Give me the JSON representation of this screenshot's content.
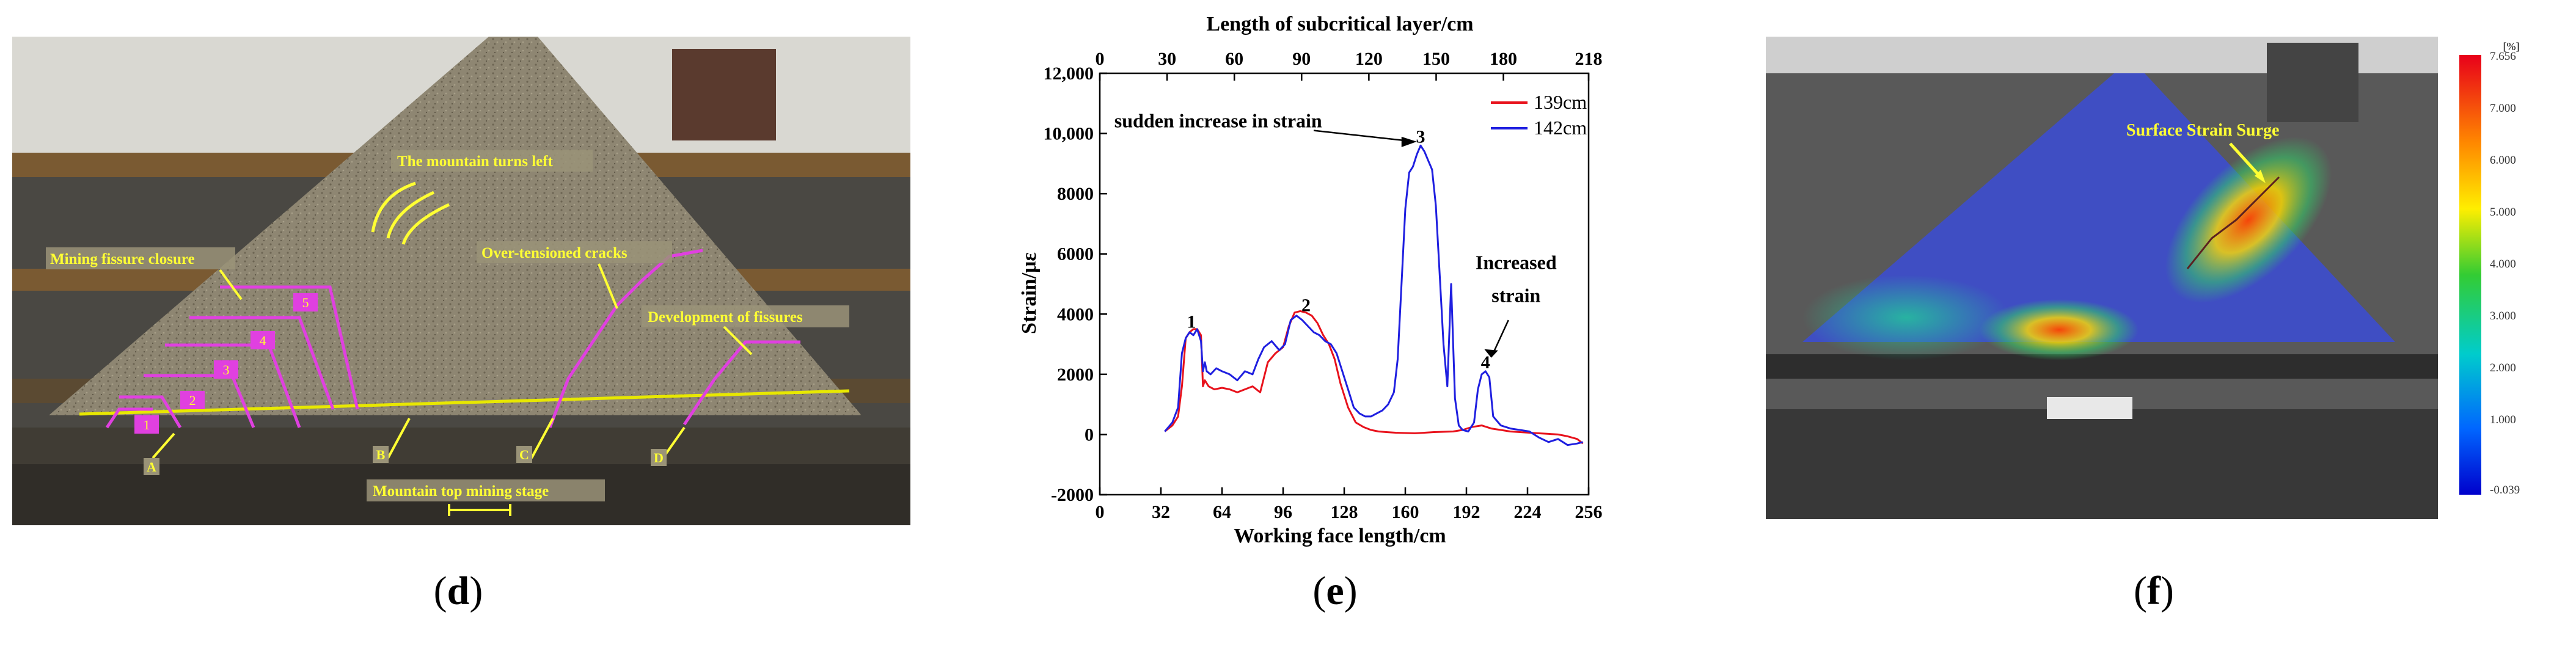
{
  "panels": {
    "d": {
      "letter": "d",
      "annotations": {
        "mountain_turns_left": "The mountain turns left",
        "mining_fissure_closure": "Mining fissure closure",
        "over_tensioned_cracks": "Over-tensioned cracks",
        "development_of_fissures": "Development of fissures",
        "mountain_top_mining_stage": "Mountain top mining stage"
      },
      "step_labels": [
        "1",
        "2",
        "3",
        "4",
        "5"
      ],
      "markers": [
        "A",
        "B",
        "C",
        "D"
      ],
      "colors": {
        "overlay_text": "#ffff33",
        "fissure_lines": "#e040e0",
        "stratum_line": "#e8e800"
      }
    },
    "e": {
      "letter": "e",
      "chart_data": {
        "type": "line",
        "title": "",
        "xlabel": "Working face length/cm",
        "ylabel": "Strain/με",
        "x2label": "Length of subcritical layer/cm",
        "xlim": [
          0,
          256
        ],
        "ylim": [
          -2000,
          12000
        ],
        "xticks": [
          0,
          32,
          64,
          96,
          128,
          160,
          192,
          224,
          256
        ],
        "yticks": [
          -2000,
          0,
          2000,
          4000,
          6000,
          8000,
          10000,
          12000
        ],
        "ytick_labels": [
          "-2000",
          "0",
          "2000",
          "4000",
          "6000",
          "8000",
          "10,000",
          "12,000"
        ],
        "x2ticks": [
          0,
          30,
          60,
          90,
          120,
          150,
          180,
          218
        ],
        "legend_position": "top-right",
        "series": [
          {
            "name": "139cm",
            "color": "#e8121c",
            "x": [
              34,
              38,
              41,
              43,
              45,
              47,
              49,
              51,
              53,
              54,
              55,
              57,
              60,
              64,
              68,
              72,
              76,
              80,
              84,
              88,
              92,
              96,
              99,
              102,
              105,
              108,
              111,
              114,
              117,
              120,
              123,
              126,
              130,
              134,
              138,
              142,
              146,
              150,
              155,
              160,
              165,
              170,
              175,
              180,
              185,
              190,
              195,
              200,
              205,
              210,
              215,
              220,
              225,
              230,
              235,
              240,
              245,
              250,
              253
            ],
            "y": [
              100,
              300,
              600,
              1600,
              3200,
              3400,
              3500,
              3500,
              3300,
              1600,
              1800,
              1600,
              1500,
              1550,
              1500,
              1400,
              1500,
              1600,
              1400,
              2400,
              2700,
              2900,
              3600,
              4050,
              4100,
              4050,
              3950,
              3700,
              3300,
              3000,
              2500,
              1700,
              900,
              400,
              250,
              150,
              100,
              80,
              60,
              50,
              40,
              60,
              80,
              90,
              100,
              150,
              250,
              300,
              200,
              150,
              100,
              80,
              60,
              40,
              20,
              0,
              -60,
              -150,
              -300
            ]
          },
          {
            "name": "142cm",
            "color": "#1f1fe0",
            "x": [
              34,
              38,
              41,
              43,
              45,
              47,
              49,
              51,
              53,
              54,
              55,
              56,
              58,
              61,
              64,
              68,
              72,
              76,
              80,
              83,
              86,
              90,
              94,
              97,
              100,
              103,
              106,
              109,
              112,
              115,
              118,
              121,
              124,
              127,
              130,
              133,
              136,
              139,
              142,
              145,
              148,
              151,
              154,
              156,
              158,
              160,
              162,
              164,
              166,
              168,
              170,
              172,
              174,
              176,
              178,
              180,
              182,
              184,
              186,
              188,
              190,
              193,
              196,
              198,
              200,
              202,
              204,
              206,
              210,
              215,
              220,
              225,
              230,
              235,
              240,
              245,
              250,
              253
            ],
            "y": [
              100,
              400,
              900,
              2700,
              3200,
              3400,
              3300,
              3500,
              3100,
              2100,
              2400,
              2100,
              2000,
              2200,
              2100,
              2000,
              1800,
              2100,
              2000,
              2500,
              2900,
              3100,
              2800,
              3000,
              3800,
              3950,
              3800,
              3600,
              3400,
              3300,
              3100,
              3000,
              2700,
              2100,
              1500,
              900,
              700,
              600,
              600,
              700,
              800,
              1000,
              1400,
              2500,
              5000,
              7500,
              8700,
              8900,
              9300,
              9600,
              9400,
              9100,
              8800,
              7600,
              5300,
              3000,
              1600,
              5000,
              1200,
              300,
              150,
              100,
              400,
              1500,
              2000,
              2100,
              1900,
              600,
              300,
              200,
              150,
              100,
              -100,
              -250,
              -150,
              -350,
              -300,
              -250
            ]
          }
        ],
        "annotations": [
          {
            "text": "1",
            "x": 48,
            "y": 3550
          },
          {
            "text": "2",
            "x": 108,
            "y": 4100
          },
          {
            "text": "3",
            "x": 168,
            "y": 9700
          },
          {
            "text": "4",
            "x": 202,
            "y": 2200
          },
          {
            "text": "sudden increase in strain",
            "x": 62,
            "y": 10200
          },
          {
            "text": "Increased",
            "x": 218,
            "y": 5500
          },
          {
            "text": "strain",
            "x": 218,
            "y": 4400
          }
        ]
      }
    },
    "f": {
      "letter": "f",
      "annotation": "Surface Strain Surge",
      "colorbar": {
        "unit": "[%]",
        "labels": [
          "7.656",
          "7.000",
          "6.000",
          "5.000",
          "4.000",
          "3.000",
          "2.000",
          "1.000",
          "-0.039"
        ]
      }
    }
  }
}
